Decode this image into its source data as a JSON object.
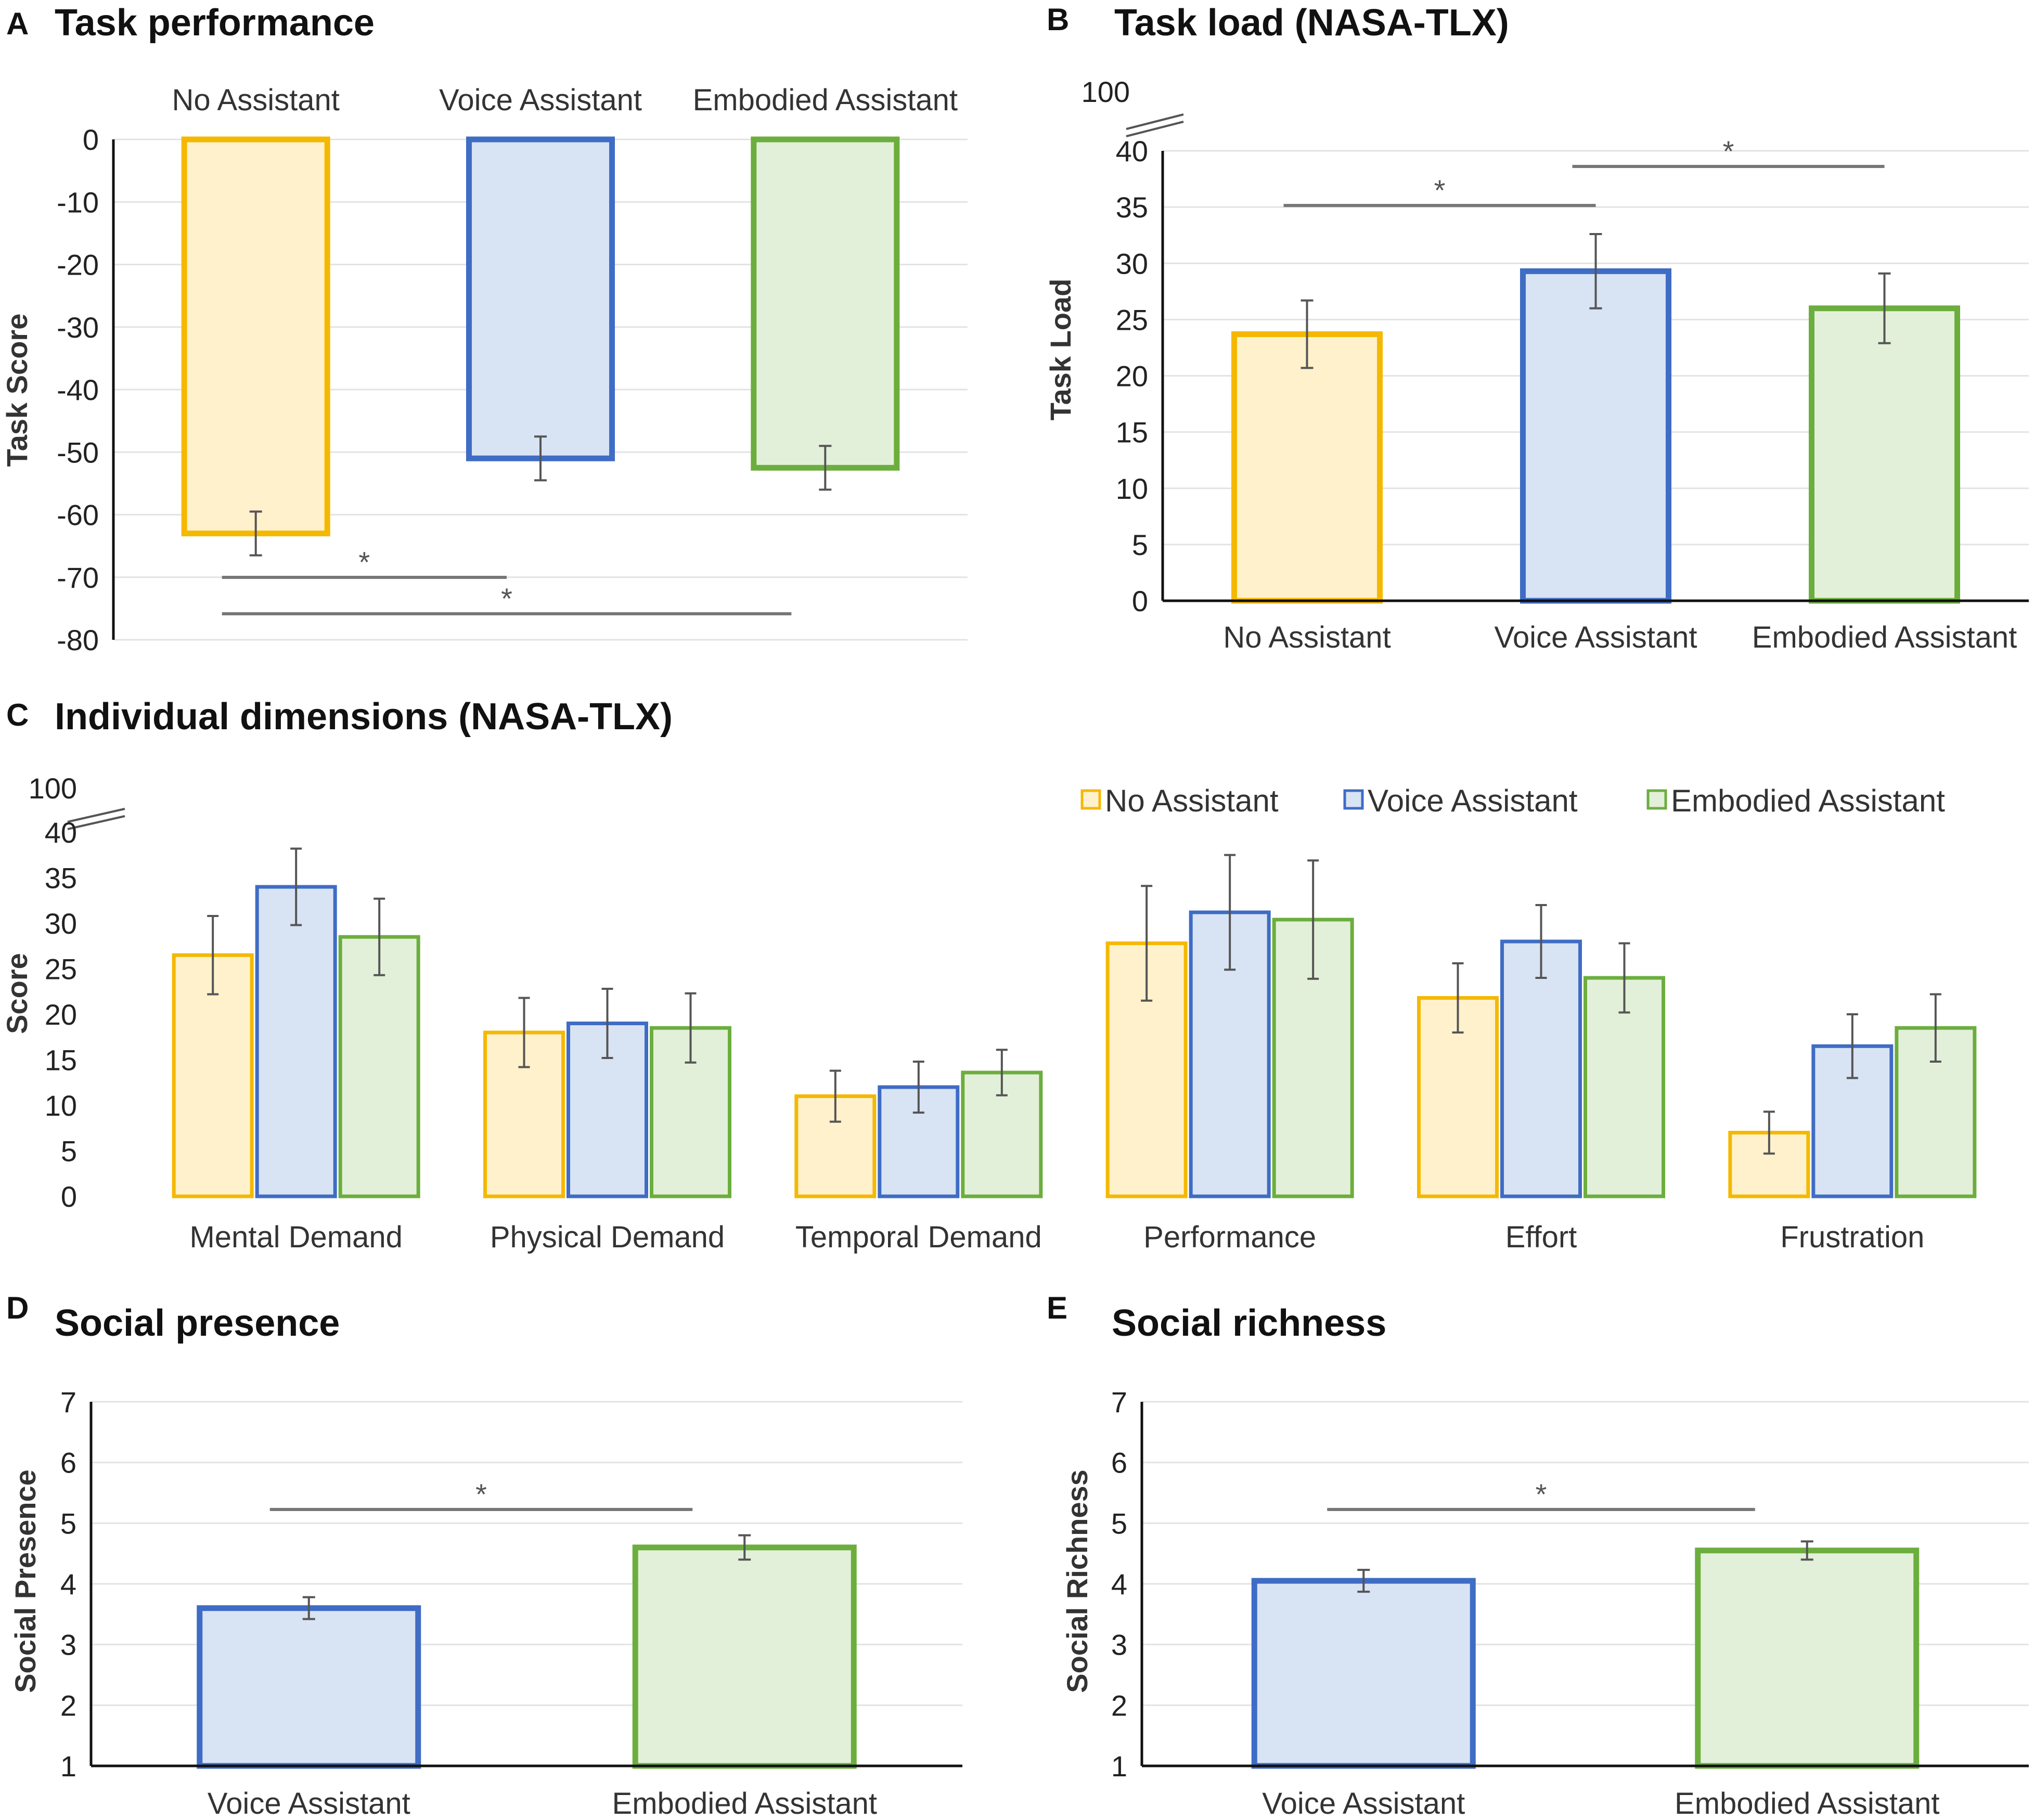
{
  "colors": {
    "no_stroke": "#F5B800",
    "no_fill": "#FFF1CC",
    "voice_stroke": "#3F6CC4",
    "voice_fill": "#D8E3F4",
    "emb_stroke": "#6CAE3E",
    "emb_fill": "#E3F0D9",
    "grid": "#E3E3E3",
    "axis": "#111111",
    "err": "#555555",
    "sig": "#777777"
  },
  "chart_data": [
    {
      "id": "A",
      "letter": "A",
      "title": "Task performance",
      "type": "bar",
      "ylabel": "Task Score",
      "ylim": [
        -80,
        0
      ],
      "yticks": [
        0,
        -10,
        -20,
        -30,
        -40,
        -50,
        -60,
        -70,
        -80
      ],
      "categories": [
        "No Assistant",
        "Voice Assistant",
        "Embodied Assistant"
      ],
      "values": [
        -63,
        -51,
        -52.5
      ],
      "errors": [
        3.5,
        3.5,
        3.5
      ],
      "significance": [
        {
          "from": 0,
          "to": 1,
          "label": "*"
        },
        {
          "from": 0,
          "to": 2,
          "label": "*"
        }
      ]
    },
    {
      "id": "B",
      "letter": "B",
      "title": "Task load (NASA-TLX)",
      "type": "bar",
      "ylabel": "Task Load",
      "ylim": [
        0,
        40
      ],
      "yticks": [
        0,
        5,
        10,
        15,
        20,
        25,
        30,
        35,
        40
      ],
      "axis_break_label": "100",
      "categories": [
        "No Assistant",
        "Voice Assistant",
        "Embodied Assistant"
      ],
      "values": [
        23.7,
        29.3,
        26
      ],
      "errors": [
        3,
        3.3,
        3.1
      ],
      "significance": [
        {
          "from": 0,
          "to": 1,
          "label": "*"
        },
        {
          "from": 1,
          "to": 2,
          "label": "*"
        }
      ]
    },
    {
      "id": "C",
      "letter": "C",
      "title": "Individual dimensions (NASA-TLX)",
      "type": "bar",
      "ylabel": "Score",
      "ylim": [
        0,
        40
      ],
      "yticks": [
        0,
        5,
        10,
        15,
        20,
        25,
        30,
        35,
        40
      ],
      "axis_break_label": "100",
      "categories": [
        "Mental Demand",
        "Physical Demand",
        "Temporal Demand",
        "Performance",
        "Effort",
        "Frustration"
      ],
      "legend": [
        "No Assistant",
        "Voice Assistant",
        "Embodied Assistant"
      ],
      "series": [
        {
          "name": "No Assistant",
          "values": [
            26.5,
            18,
            11,
            27.8,
            21.8,
            7
          ],
          "errors": [
            4.3,
            3.8,
            2.8,
            6.3,
            3.8,
            2.3
          ]
        },
        {
          "name": "Voice Assistant",
          "values": [
            34,
            19,
            12,
            31.2,
            28,
            16.5
          ],
          "errors": [
            4.2,
            3.8,
            2.8,
            6.3,
            4,
            3.5
          ]
        },
        {
          "name": "Embodied Assistant",
          "values": [
            28.5,
            18.5,
            13.6,
            30.4,
            24,
            18.5
          ],
          "errors": [
            4.2,
            3.8,
            2.5,
            6.5,
            3.8,
            3.7
          ]
        }
      ]
    },
    {
      "id": "D",
      "letter": "D",
      "title": "Social presence",
      "type": "bar",
      "ylabel": "Social Presence",
      "ylim": [
        1,
        7
      ],
      "yticks": [
        1,
        2,
        3,
        4,
        5,
        6,
        7
      ],
      "categories": [
        "Voice Assistant",
        "Embodied Assistant"
      ],
      "values": [
        3.6,
        4.6
      ],
      "errors": [
        0.18,
        0.2
      ],
      "significance": [
        {
          "from": 0,
          "to": 1,
          "label": "*"
        }
      ]
    },
    {
      "id": "E",
      "letter": "E",
      "title": "Social richness",
      "type": "bar",
      "ylabel": "Social Richness",
      "ylim": [
        1,
        7
      ],
      "yticks": [
        1,
        2,
        3,
        4,
        5,
        6,
        7
      ],
      "categories": [
        "Voice Assistant",
        "Embodied Assistant"
      ],
      "values": [
        4.05,
        4.55
      ],
      "errors": [
        0.18,
        0.15
      ],
      "significance": [
        {
          "from": 0,
          "to": 1,
          "label": "*"
        }
      ]
    }
  ]
}
